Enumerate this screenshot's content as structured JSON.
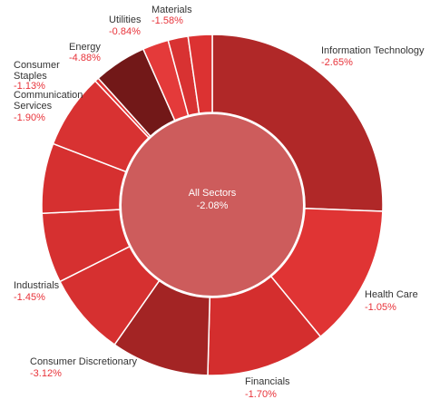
{
  "chart_data": {
    "type": "pie",
    "center": {
      "label": "All Sectors",
      "value": "-2.08%",
      "color": "#cd5c5c"
    },
    "segments": [
      {
        "name": "Information Technology",
        "pct": "-2.65%",
        "weight": 27.0,
        "color": "#b02828"
      },
      {
        "name": "Health Care",
        "pct": "-1.05%",
        "weight": 14.2,
        "color": "#e03434"
      },
      {
        "name": "Financials",
        "pct": "-1.70%",
        "weight": 12.0,
        "color": "#d42e2e"
      },
      {
        "name": "Consumer Discretionary",
        "pct": "-3.12%",
        "weight": 9.8,
        "color": "#a32424"
      },
      {
        "name": "Industrials",
        "pct": "-1.45%",
        "weight": 8.3,
        "color": "#d63030"
      },
      {
        "name": "",
        "pct": "",
        "weight": 7.0,
        "color": "#d63030"
      },
      {
        "name": "",
        "pct": "",
        "weight": 7.0,
        "color": "#d63030"
      },
      {
        "name": "Communication Services",
        "pct": "-1.90%",
        "weight": 7.5,
        "color": "#d83232"
      },
      {
        "name": "Consumer Staples",
        "pct": "-1.13%",
        "weight": 0.4,
        "color": "#e03434"
      },
      {
        "name": "Energy",
        "pct": "-4.88%",
        "weight": 5.3,
        "color": "#721818"
      },
      {
        "name": "Utilities",
        "pct": "-0.84%",
        "weight": 2.6,
        "color": "#e43a3a"
      },
      {
        "name": "",
        "pct": "",
        "weight": 2.0,
        "color": "#d83232"
      },
      {
        "name": "Materials",
        "pct": "-1.58%",
        "weight": 2.4,
        "color": "#dc3232"
      }
    ]
  }
}
